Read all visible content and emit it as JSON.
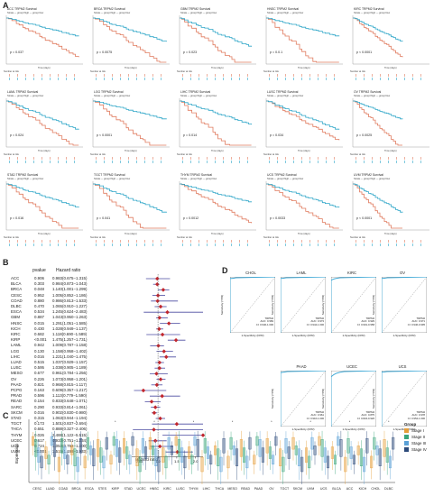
{
  "panel_labels": {
    "a": "A",
    "b": "B",
    "c": "C",
    "d": "D"
  },
  "km_legend": "Strata  —  group=high  —  group=low",
  "km_xlabel": "Time (days)",
  "km_risk_title": "Number at risk",
  "km_plots": [
    {
      "title": "ACC TRPM2 Survival",
      "p": "p = 0.037"
    },
    {
      "title": "BRCA TRPM2 Survival",
      "p": "p = 0.0075"
    },
    {
      "title": "GBM TRPM2 Survival",
      "p": "p = 0.023"
    },
    {
      "title": "HNSC TRPM2 Survival",
      "p": "p = 0.0.1"
    },
    {
      "title": "KIRC TRPM2 Survival",
      "p": "p < 0.0001"
    },
    {
      "title": "LAML TRPM2 Survival",
      "p": "p = 0.024"
    },
    {
      "title": "LGG TRPM2 Survival",
      "p": "p < 0.0001"
    },
    {
      "title": "LIHC TRPM2 Survival",
      "p": "p = 0.014"
    },
    {
      "title": "LUSC TRPM2 Survival",
      "p": "p = 0.034"
    },
    {
      "title": "OV TRPM2 Survival",
      "p": "p = 0.0025"
    },
    {
      "title": "STAD TRPM2 Survival",
      "p": "p = 0.016"
    },
    {
      "title": "TGCT TRPM2 Survival",
      "p": "p = 0.041"
    },
    {
      "title": "THYM TRPM2 Survival",
      "p": "p = 0.0012"
    },
    {
      "title": "UCS TRPM2 Survival",
      "p": "p = 0.0033"
    },
    {
      "title": "UVM TRPM2 Survival",
      "p": "p < 0.0001"
    }
  ],
  "forest": {
    "headers": {
      "p": "pvalue",
      "hr": "Hazard ratio"
    },
    "xlabel": "Hazard ratio",
    "ticks": [
      "0.50",
      "1.0",
      "1.5",
      "2.0"
    ],
    "rows": [
      {
        "cancer": "ACC",
        "p": "0.906",
        "hr": "0.983(0.675−1.315)",
        "v": 0.98,
        "lo": 0.68,
        "hi": 1.32
      },
      {
        "cancer": "BLCA",
        "p": "0.303",
        "hr": "0.984(0.873−1.043)",
        "v": 0.98,
        "lo": 0.87,
        "hi": 1.04
      },
      {
        "cancer": "BRCA",
        "p": "0.048",
        "hr": "1.140(1.001−1.299)",
        "v": 1.14,
        "lo": 1.0,
        "hi": 1.3
      },
      {
        "cancer": "CESC",
        "p": "0.952",
        "hr": "1.005(0.852−1.186)",
        "v": 1.0,
        "lo": 0.85,
        "hi": 1.19
      },
      {
        "cancer": "COAD",
        "p": "0.880",
        "hr": "0.986(0.813−1.533)",
        "v": 0.99,
        "lo": 0.81,
        "hi": 1.53
      },
      {
        "cancer": "DLBC",
        "p": "0.470",
        "hr": "1.065(0.910−1.227)",
        "v": 1.07,
        "lo": 0.91,
        "hi": 1.23
      },
      {
        "cancer": "ESCA",
        "p": "0.534",
        "hr": "1.245(0.624−2.483)",
        "v": 1.25,
        "lo": 0.62,
        "hi": 2.2
      },
      {
        "cancer": "GBM",
        "p": "0.887",
        "hr": "1.043(0.950−1.263)",
        "v": 1.04,
        "lo": 0.95,
        "hi": 1.26
      },
      {
        "cancer": "HNSC",
        "p": "0.015",
        "hr": "1.291(1.051−1.585)",
        "v": 1.29,
        "lo": 1.05,
        "hi": 1.59
      },
      {
        "cancer": "KICH",
        "p": "0.430",
        "hr": "1.028(0.949−1.137)",
        "v": 1.03,
        "lo": 0.95,
        "hi": 1.14
      },
      {
        "cancer": "KIRC",
        "p": "0.682",
        "hr": "1.118(0.690−1.589)",
        "v": 1.12,
        "lo": 0.69,
        "hi": 1.59
      },
      {
        "cancer": "KIRP",
        "p": "<0.001",
        "hr": "1.475(1.257−1.731)",
        "v": 1.48,
        "lo": 1.26,
        "hi": 1.73
      },
      {
        "cancer": "LAML",
        "p": "0.942",
        "hr": "1.009(0.787−1.158)",
        "v": 1.01,
        "lo": 0.79,
        "hi": 1.16
      },
      {
        "cancer": "LGG",
        "p": "0.130",
        "hr": "1.158(0.958−1.402)",
        "v": 1.16,
        "lo": 0.96,
        "hi": 1.4
      },
      {
        "cancer": "LIHC",
        "p": "0.016",
        "hr": "1.221(1.040−1.475)",
        "v": 1.22,
        "lo": 1.04,
        "hi": 1.48
      },
      {
        "cancer": "LUAD",
        "p": "0.515",
        "hr": "1.037(0.929−1.157)",
        "v": 1.04,
        "lo": 0.93,
        "hi": 1.16
      },
      {
        "cancer": "LUSC",
        "p": "0.595",
        "hr": "1.038(0.905−1.189)",
        "v": 1.04,
        "lo": 0.91,
        "hi": 1.19
      },
      {
        "cancer": "MESO",
        "p": "0.677",
        "hr": "0.961(0.784−1.256)",
        "v": 0.96,
        "lo": 0.78,
        "hi": 1.26
      },
      {
        "cancer": "OV",
        "p": "0.226",
        "hr": "1.073(0.958−1.201)",
        "v": 1.07,
        "lo": 0.96,
        "hi": 1.2
      },
      {
        "cancer": "PAAD",
        "p": "0.821",
        "hr": "0.968(0.815−1.117)",
        "v": 0.97,
        "lo": 0.82,
        "hi": 1.12
      },
      {
        "cancer": "PCPG",
        "p": "0.163",
        "hr": "0.609(0.357−1.217)",
        "v": 0.61,
        "lo": 0.36,
        "hi": 1.22
      },
      {
        "cancer": "PRAD",
        "p": "0.596",
        "hr": "1.113(0.779−1.590)",
        "v": 1.11,
        "lo": 0.78,
        "hi": 1.59
      },
      {
        "cancer": "READ",
        "p": "0.154",
        "hr": "0.833(0.648−1.071)",
        "v": 0.83,
        "lo": 0.65,
        "hi": 1.07
      },
      {
        "cancer": "SARC",
        "p": "0.290",
        "hr": "0.933(0.814−1.061)",
        "v": 0.93,
        "lo": 0.81,
        "hi": 1.06
      },
      {
        "cancer": "SKCM",
        "p": "0.016",
        "hr": "0.902(0.830−0.980)",
        "v": 0.9,
        "lo": 0.83,
        "hi": 0.98
      },
      {
        "cancer": "STAD",
        "p": "0.315",
        "hr": "1.063(0.944−1.194)",
        "v": 1.06,
        "lo": 0.94,
        "hi": 1.19
      },
      {
        "cancer": "TGCT",
        "p": "0.173",
        "hr": "1.501(0.837−2.694)",
        "v": 1.5,
        "lo": 0.84,
        "hi": 2.2
      },
      {
        "cancer": "THCA",
        "p": "0.651",
        "hr": "0.888(0.327−2.406)",
        "v": 0.89,
        "lo": 0.33,
        "hi": 2.2
      },
      {
        "cancer": "THYM",
        "p": "0.026",
        "hr": "2.488(1.122−5.515)",
        "v": 2.2,
        "lo": 1.12,
        "hi": 2.2
      },
      {
        "cancer": "UCEC",
        "p": "0.617",
        "hr": "0.933(0.751−1.234)",
        "v": 0.93,
        "lo": 0.75,
        "hi": 1.23
      },
      {
        "cancer": "UCS",
        "p": "0.724",
        "hr": "1.053(0.792−1.400)",
        "v": 1.05,
        "lo": 0.79,
        "hi": 1.4
      },
      {
        "cancer": "UVM",
        "p": "<0.001",
        "hr": "1.515(1.198−1.933)",
        "v": 1.52,
        "lo": 1.2,
        "hi": 1.93
      }
    ]
  },
  "roc": {
    "xlabel": "1-Specificity (FPR)",
    "ylabel": "Sensitivity (TPR)",
    "panels": [
      {
        "title": "CHOL",
        "auc": "AUC: 0.969",
        "ci": "CI: 0.940-1.000"
      },
      {
        "title": "LAML",
        "auc": "AUC: 0.973",
        "ci": "CI: 0.944-1.000"
      },
      {
        "title": "KIRC",
        "auc": "AUC: 0.929",
        "ci": "CI: 0.901-0.958"
      },
      {
        "title": "OV",
        "auc": "AUC: 0.971",
        "ci": "CI: 0.946-0.995"
      },
      {
        "title": "PAAD",
        "auc": "AUC: 0.961",
        "ci": "CI: 0.916-1.000"
      },
      {
        "title": "UCEC",
        "auc": "AUC: 0.875",
        "ci": "CI: 0.824-0.926"
      },
      {
        "title": "UCS",
        "auc": "AUC: 0.978",
        "ci": "CI: 0.954-1.000"
      }
    ],
    "label_gene": "TRPM2"
  },
  "boxplot": {
    "ylabel": "Expression",
    "categories": [
      "CESC",
      "LUAD",
      "COAD",
      "BRCA",
      "ESCA",
      "STES",
      "KIRP",
      "STAD",
      "UCEC",
      "HNSC",
      "KIRC",
      "LUSC",
      "THYM",
      "LIHC",
      "THCA",
      "MESO",
      "READ",
      "PAAD",
      "OV",
      "TGCT",
      "SKCM",
      "UVM",
      "UCS",
      "BLCA",
      "ACC",
      "KICH",
      "CHOL",
      "DLBC"
    ],
    "stage_legend_title": "Group",
    "stages": [
      {
        "name": "Stage I",
        "color": "#e69f3a"
      },
      {
        "name": "Stage II",
        "color": "#3aa57a"
      },
      {
        "name": "Stage III",
        "color": "#5aa0d6"
      },
      {
        "name": "Stage IV",
        "color": "#2c4a7a"
      }
    ]
  },
  "colors": {
    "high": "#e07b5f",
    "low": "#2fa6c8",
    "forest": "#c0262d",
    "roc": "#3da8d6"
  }
}
